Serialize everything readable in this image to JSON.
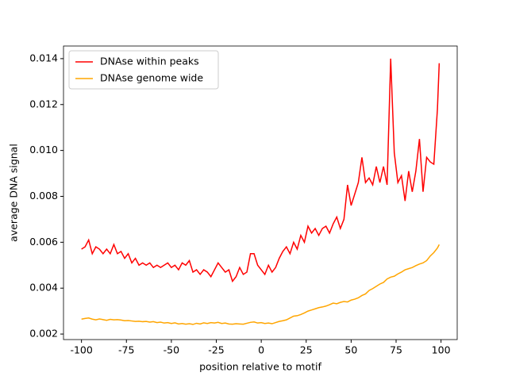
{
  "chart_data": {
    "type": "line",
    "xlabel": "position relative to motif",
    "ylabel": "average DNA signal",
    "x": [
      -100,
      -98,
      -96,
      -94,
      -92,
      -90,
      -88,
      -86,
      -84,
      -82,
      -80,
      -78,
      -76,
      -74,
      -72,
      -70,
      -68,
      -66,
      -64,
      -62,
      -60,
      -58,
      -56,
      -54,
      -52,
      -50,
      -48,
      -46,
      -44,
      -42,
      -40,
      -38,
      -36,
      -34,
      -32,
      -30,
      -28,
      -26,
      -24,
      -22,
      -20,
      -18,
      -16,
      -14,
      -12,
      -10,
      -8,
      -6,
      -4,
      -2,
      0,
      2,
      4,
      6,
      8,
      10,
      12,
      14,
      16,
      18,
      20,
      22,
      24,
      26,
      28,
      30,
      32,
      34,
      36,
      38,
      40,
      42,
      44,
      46,
      48,
      50,
      52,
      54,
      56,
      58,
      60,
      62,
      64,
      66,
      68,
      70,
      72,
      74,
      76,
      78,
      80,
      82,
      84,
      86,
      88,
      90,
      92,
      94,
      96,
      98,
      99
    ],
    "series": [
      {
        "name": "DNAse within peaks",
        "color": "#ff0000",
        "values": [
          0.0057,
          0.0058,
          0.0061,
          0.0055,
          0.0058,
          0.0057,
          0.0055,
          0.0057,
          0.0055,
          0.0059,
          0.0055,
          0.0056,
          0.0053,
          0.0055,
          0.0051,
          0.0053,
          0.005,
          0.0051,
          0.005,
          0.0051,
          0.0049,
          0.005,
          0.0049,
          0.005,
          0.0051,
          0.0049,
          0.005,
          0.0048,
          0.0051,
          0.005,
          0.0052,
          0.0047,
          0.0048,
          0.0046,
          0.0048,
          0.0047,
          0.0045,
          0.0048,
          0.0051,
          0.0049,
          0.0047,
          0.0048,
          0.0043,
          0.0045,
          0.0049,
          0.0046,
          0.0047,
          0.0055,
          0.0055,
          0.005,
          0.0048,
          0.0046,
          0.005,
          0.0047,
          0.0049,
          0.0053,
          0.0056,
          0.0058,
          0.0055,
          0.006,
          0.0057,
          0.0063,
          0.006,
          0.0067,
          0.0064,
          0.0066,
          0.0063,
          0.0066,
          0.0067,
          0.0064,
          0.0068,
          0.0071,
          0.0066,
          0.007,
          0.0085,
          0.0076,
          0.0081,
          0.0086,
          0.0097,
          0.0086,
          0.0088,
          0.0085,
          0.0093,
          0.0086,
          0.0093,
          0.0085,
          0.014,
          0.0099,
          0.0086,
          0.0089,
          0.0078,
          0.0091,
          0.0082,
          0.0091,
          0.0105,
          0.0082,
          0.0097,
          0.0095,
          0.0094,
          0.0118,
          0.0138
        ]
      },
      {
        "name": "DNAse genome wide",
        "color": "#ffa500",
        "values": [
          0.00265,
          0.00268,
          0.0027,
          0.00265,
          0.00262,
          0.00266,
          0.00263,
          0.0026,
          0.00264,
          0.00262,
          0.00263,
          0.00261,
          0.00258,
          0.00259,
          0.00257,
          0.00255,
          0.00256,
          0.00254,
          0.00255,
          0.00252,
          0.00254,
          0.0025,
          0.00252,
          0.00248,
          0.0025,
          0.00246,
          0.00249,
          0.00244,
          0.00246,
          0.00243,
          0.00245,
          0.00242,
          0.00247,
          0.00244,
          0.00249,
          0.00246,
          0.0025,
          0.00248,
          0.00251,
          0.00246,
          0.00248,
          0.00244,
          0.00243,
          0.00245,
          0.00244,
          0.00243,
          0.00247,
          0.00251,
          0.00253,
          0.00248,
          0.0025,
          0.00246,
          0.00248,
          0.00245,
          0.0025,
          0.00255,
          0.00258,
          0.00262,
          0.0027,
          0.00278,
          0.0028,
          0.00285,
          0.00292,
          0.003,
          0.00305,
          0.0031,
          0.00315,
          0.00318,
          0.00322,
          0.00328,
          0.00335,
          0.00332,
          0.00338,
          0.00342,
          0.0034,
          0.00348,
          0.00352,
          0.00358,
          0.00368,
          0.00375,
          0.0039,
          0.00398,
          0.00408,
          0.00418,
          0.00425,
          0.0044,
          0.00448,
          0.00452,
          0.00462,
          0.0047,
          0.0048,
          0.00485,
          0.0049,
          0.00498,
          0.00505,
          0.0051,
          0.0052,
          0.0054,
          0.00555,
          0.00575,
          0.0059
        ]
      }
    ],
    "xlim": [
      -110,
      109
    ],
    "xticks": [
      -100,
      -75,
      -50,
      -25,
      0,
      25,
      50,
      75,
      100
    ],
    "ylim": [
      0.00176,
      0.01455
    ],
    "yticks": [
      0.002,
      0.004,
      0.006,
      0.008,
      {
        "value": 0.01,
        "label": "0.010"
      },
      0.012,
      0.014
    ],
    "legend": "upper left",
    "grid": false
  }
}
